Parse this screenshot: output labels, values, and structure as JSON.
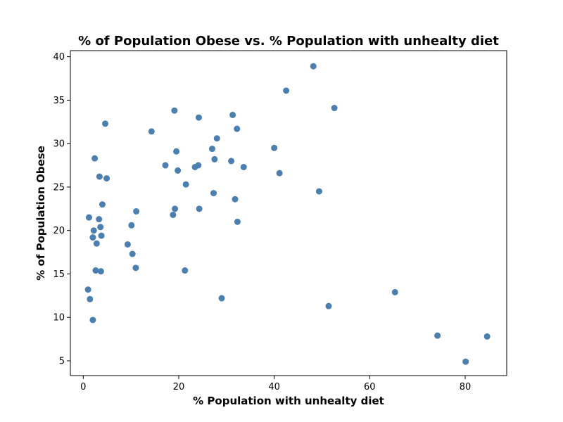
{
  "chart_data": {
    "type": "scatter",
    "title": "% of Population Obese vs. % Population with unhealty diet",
    "xlabel": "% Population with unhealty diet",
    "ylabel": "% of Population Obese",
    "xlim": [
      -2.7,
      88.7
    ],
    "ylim": [
      3.3,
      40.7
    ],
    "xticks": [
      0,
      20,
      40,
      60,
      80
    ],
    "yticks": [
      5,
      10,
      15,
      20,
      25,
      30,
      35,
      40
    ],
    "grid": false,
    "marker_color": "#4a7fb0",
    "points": [
      {
        "x": 1.0,
        "y": 13.2
      },
      {
        "x": 1.2,
        "y": 21.5
      },
      {
        "x": 1.4,
        "y": 12.1
      },
      {
        "x": 2.0,
        "y": 19.2
      },
      {
        "x": 2.0,
        "y": 9.7
      },
      {
        "x": 2.2,
        "y": 20.0
      },
      {
        "x": 2.4,
        "y": 28.3
      },
      {
        "x": 2.6,
        "y": 15.4
      },
      {
        "x": 2.8,
        "y": 18.5
      },
      {
        "x": 3.3,
        "y": 21.3
      },
      {
        "x": 3.4,
        "y": 26.2
      },
      {
        "x": 3.6,
        "y": 20.4
      },
      {
        "x": 3.7,
        "y": 15.3
      },
      {
        "x": 3.8,
        "y": 19.4
      },
      {
        "x": 4.0,
        "y": 23.0
      },
      {
        "x": 4.6,
        "y": 32.3
      },
      {
        "x": 4.9,
        "y": 26.0
      },
      {
        "x": 9.3,
        "y": 18.4
      },
      {
        "x": 10.1,
        "y": 20.6
      },
      {
        "x": 10.3,
        "y": 17.3
      },
      {
        "x": 11.0,
        "y": 15.7
      },
      {
        "x": 11.1,
        "y": 22.2
      },
      {
        "x": 14.3,
        "y": 31.4
      },
      {
        "x": 17.2,
        "y": 27.5
      },
      {
        "x": 18.8,
        "y": 21.8
      },
      {
        "x": 19.1,
        "y": 33.8
      },
      {
        "x": 19.2,
        "y": 22.5
      },
      {
        "x": 19.5,
        "y": 29.1
      },
      {
        "x": 19.8,
        "y": 26.9
      },
      {
        "x": 21.3,
        "y": 15.4
      },
      {
        "x": 21.5,
        "y": 25.3
      },
      {
        "x": 23.4,
        "y": 27.3
      },
      {
        "x": 24.1,
        "y": 27.5
      },
      {
        "x": 24.2,
        "y": 33.0
      },
      {
        "x": 24.3,
        "y": 22.5
      },
      {
        "x": 27.0,
        "y": 29.4
      },
      {
        "x": 27.3,
        "y": 24.3
      },
      {
        "x": 27.5,
        "y": 28.2
      },
      {
        "x": 28.0,
        "y": 30.6
      },
      {
        "x": 29.0,
        "y": 12.2
      },
      {
        "x": 31.0,
        "y": 28.0
      },
      {
        "x": 31.3,
        "y": 33.3
      },
      {
        "x": 31.8,
        "y": 23.6
      },
      {
        "x": 32.2,
        "y": 31.7
      },
      {
        "x": 32.3,
        "y": 21.0
      },
      {
        "x": 33.6,
        "y": 27.3
      },
      {
        "x": 40.0,
        "y": 29.5
      },
      {
        "x": 41.1,
        "y": 26.6
      },
      {
        "x": 42.5,
        "y": 36.1
      },
      {
        "x": 48.2,
        "y": 38.9
      },
      {
        "x": 49.4,
        "y": 24.5
      },
      {
        "x": 51.4,
        "y": 11.3
      },
      {
        "x": 52.6,
        "y": 34.1
      },
      {
        "x": 65.3,
        "y": 12.9
      },
      {
        "x": 74.2,
        "y": 7.9
      },
      {
        "x": 80.1,
        "y": 4.9
      },
      {
        "x": 84.6,
        "y": 7.8
      }
    ]
  }
}
